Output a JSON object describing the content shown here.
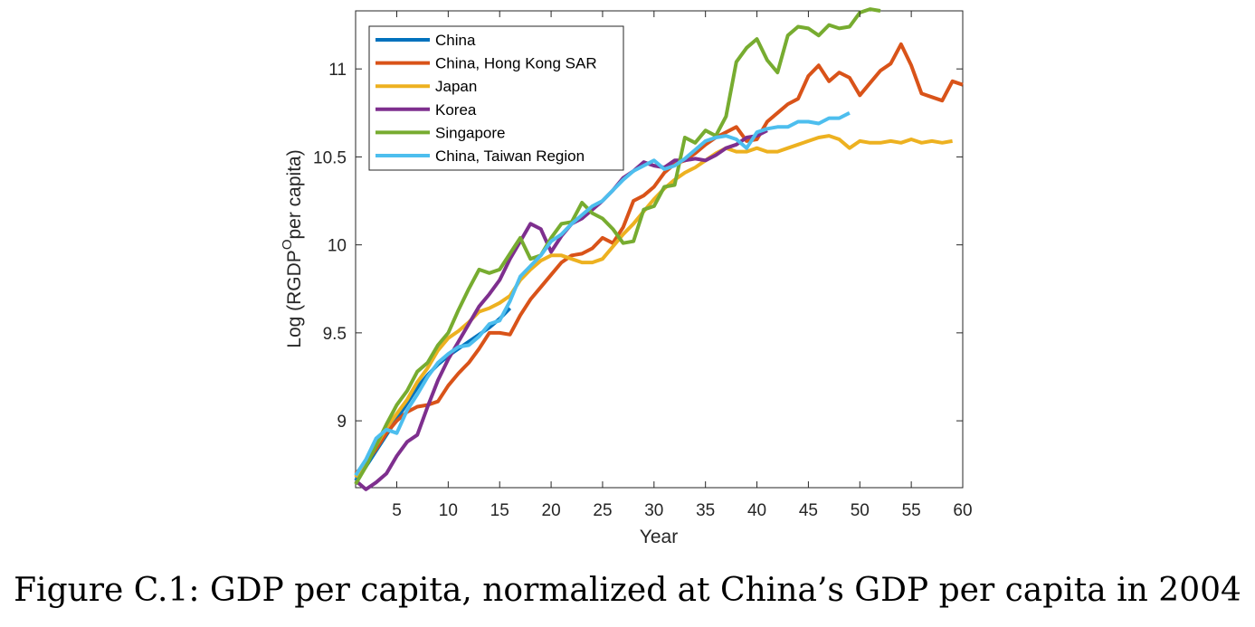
{
  "caption": "Figure C.1: GDP per capita, normalized at China’s GDP per capita in 2004",
  "chart_data": {
    "type": "line",
    "title": "",
    "xlabel": "Year",
    "ylabel_main": "Log (RGDP",
    "ylabel_sup": "O",
    "ylabel_tail": "per capita)",
    "xlim": [
      1,
      60
    ],
    "ylim": [
      8.62,
      11.33
    ],
    "xticks": [
      5,
      10,
      15,
      20,
      25,
      30,
      35,
      40,
      45,
      50,
      55,
      60
    ],
    "yticks": [
      9,
      9.5,
      10,
      10.5,
      11
    ],
    "ytick_labels": [
      "9",
      "9.5",
      "10",
      "10.5",
      "11"
    ],
    "grid": false,
    "legend_position": "top-left",
    "series": [
      {
        "name": "China",
        "color": "#0072BD",
        "x": [
          1,
          2,
          3,
          4,
          5,
          6,
          7,
          8,
          9,
          10,
          11,
          12,
          13,
          14,
          15,
          16
        ],
        "y": [
          8.66,
          8.74,
          8.83,
          8.92,
          9.01,
          9.1,
          9.19,
          9.26,
          9.32,
          9.37,
          9.41,
          9.45,
          9.49,
          9.53,
          9.58,
          9.64
        ]
      },
      {
        "name": "China, Hong Kong SAR",
        "color": "#D95319",
        "x": [
          1,
          2,
          3,
          4,
          5,
          6,
          7,
          8,
          9,
          10,
          11,
          12,
          13,
          14,
          15,
          16,
          17,
          18,
          19,
          20,
          21,
          22,
          23,
          24,
          25,
          26,
          27,
          28,
          29,
          30,
          31,
          32,
          33,
          34,
          35,
          36,
          37,
          38,
          39,
          40,
          41,
          42,
          43,
          44,
          45,
          46,
          47,
          48,
          49,
          50,
          51,
          52,
          53,
          54,
          55,
          56,
          57,
          58,
          59,
          60
        ],
        "y": [
          8.7,
          8.76,
          8.84,
          8.93,
          9.0,
          9.05,
          9.08,
          9.09,
          9.11,
          9.2,
          9.27,
          9.33,
          9.41,
          9.5,
          9.5,
          9.49,
          9.6,
          9.69,
          9.76,
          9.83,
          9.9,
          9.94,
          9.95,
          9.98,
          10.04,
          10.01,
          10.1,
          10.25,
          10.28,
          10.33,
          10.41,
          10.46,
          10.48,
          10.52,
          10.57,
          10.61,
          10.64,
          10.67,
          10.59,
          10.6,
          10.7,
          10.75,
          10.8,
          10.83,
          10.96,
          11.02,
          10.93,
          10.98,
          10.95,
          10.85,
          10.92,
          10.99,
          11.03,
          11.14,
          11.02,
          10.86,
          10.84,
          10.82,
          10.93,
          10.91
        ]
      },
      {
        "name": "Japan",
        "color": "#EDB120",
        "x": [
          1,
          2,
          3,
          4,
          5,
          6,
          7,
          8,
          9,
          10,
          11,
          12,
          13,
          14,
          15,
          16,
          17,
          18,
          19,
          20,
          21,
          22,
          23,
          24,
          25,
          26,
          27,
          28,
          29,
          30,
          31,
          32,
          33,
          34,
          35,
          36,
          37,
          38,
          39,
          40,
          41,
          42,
          43,
          44,
          45,
          46,
          47,
          48,
          49,
          50,
          51,
          52,
          53,
          54,
          55,
          56,
          57,
          58,
          59
        ],
        "y": [
          8.68,
          8.76,
          8.86,
          8.96,
          9.04,
          9.12,
          9.22,
          9.3,
          9.4,
          9.47,
          9.51,
          9.56,
          9.62,
          9.64,
          9.67,
          9.71,
          9.8,
          9.86,
          9.91,
          9.94,
          9.94,
          9.92,
          9.9,
          9.9,
          9.92,
          9.99,
          10.06,
          10.12,
          10.19,
          10.26,
          10.32,
          10.37,
          10.41,
          10.44,
          10.48,
          10.52,
          10.55,
          10.53,
          10.53,
          10.55,
          10.53,
          10.53,
          10.55,
          10.57,
          10.59,
          10.61,
          10.62,
          10.6,
          10.55,
          10.59,
          10.58,
          10.58,
          10.59,
          10.58,
          10.6,
          10.58,
          10.59,
          10.58,
          10.59
        ]
      },
      {
        "name": "Korea",
        "color": "#7E2F8E",
        "x": [
          1,
          2,
          3,
          4,
          5,
          6,
          7,
          8,
          9,
          10,
          11,
          12,
          13,
          14,
          15,
          16,
          17,
          18,
          19,
          20,
          21,
          22,
          23,
          24,
          25,
          26,
          27,
          28,
          29,
          30,
          31,
          32,
          33,
          34,
          35,
          36,
          37,
          38,
          39,
          40,
          41
        ],
        "y": [
          8.66,
          8.61,
          8.65,
          8.7,
          8.8,
          8.88,
          8.92,
          9.08,
          9.23,
          9.35,
          9.45,
          9.55,
          9.65,
          9.72,
          9.8,
          9.92,
          10.02,
          10.12,
          10.09,
          9.96,
          10.05,
          10.12,
          10.15,
          10.2,
          10.25,
          10.31,
          10.38,
          10.42,
          10.47,
          10.45,
          10.44,
          10.48,
          10.48,
          10.49,
          10.48,
          10.51,
          10.55,
          10.57,
          10.61,
          10.62,
          10.65
        ]
      },
      {
        "name": "Singapore",
        "color": "#77AC30",
        "x": [
          1,
          2,
          3,
          4,
          5,
          6,
          7,
          8,
          9,
          10,
          11,
          12,
          13,
          14,
          15,
          16,
          17,
          18,
          19,
          20,
          21,
          22,
          23,
          24,
          25,
          26,
          27,
          28,
          29,
          30,
          31,
          32,
          33,
          34,
          35,
          36,
          37,
          38,
          39,
          40,
          41,
          42,
          43,
          44,
          45,
          46,
          47,
          48,
          49,
          50,
          51,
          52
        ],
        "y": [
          8.64,
          8.74,
          8.86,
          8.98,
          9.09,
          9.17,
          9.28,
          9.33,
          9.43,
          9.5,
          9.63,
          9.75,
          9.86,
          9.84,
          9.86,
          9.95,
          10.04,
          9.92,
          9.94,
          10.04,
          10.12,
          10.13,
          10.24,
          10.18,
          10.15,
          10.09,
          10.01,
          10.02,
          10.2,
          10.22,
          10.33,
          10.34,
          10.61,
          10.58,
          10.65,
          10.62,
          10.73,
          11.04,
          11.12,
          11.17,
          11.05,
          10.98,
          11.19,
          11.24,
          11.23,
          11.19,
          11.25,
          11.23,
          11.24,
          11.32,
          11.34,
          11.33
        ]
      },
      {
        "name": "China, Taiwan Region",
        "color": "#4DBEEE",
        "x": [
          1,
          2,
          3,
          4,
          5,
          6,
          7,
          8,
          9,
          10,
          11,
          12,
          13,
          14,
          15,
          16,
          17,
          18,
          19,
          20,
          21,
          22,
          23,
          24,
          25,
          26,
          27,
          28,
          29,
          30,
          31,
          32,
          33,
          34,
          35,
          36,
          37,
          38,
          39,
          40,
          41,
          42,
          43,
          44,
          45,
          46,
          47,
          48,
          49
        ],
        "y": [
          8.69,
          8.78,
          8.9,
          8.95,
          8.93,
          9.06,
          9.15,
          9.25,
          9.33,
          9.38,
          9.42,
          9.43,
          9.48,
          9.55,
          9.57,
          9.68,
          9.82,
          9.88,
          9.94,
          10.02,
          10.06,
          10.12,
          10.17,
          10.22,
          10.25,
          10.31,
          10.37,
          10.42,
          10.45,
          10.48,
          10.43,
          10.45,
          10.49,
          10.54,
          10.59,
          10.61,
          10.62,
          10.6,
          10.55,
          10.64,
          10.66,
          10.67,
          10.67,
          10.7,
          10.7,
          10.69,
          10.72,
          10.72,
          10.75
        ]
      }
    ]
  }
}
